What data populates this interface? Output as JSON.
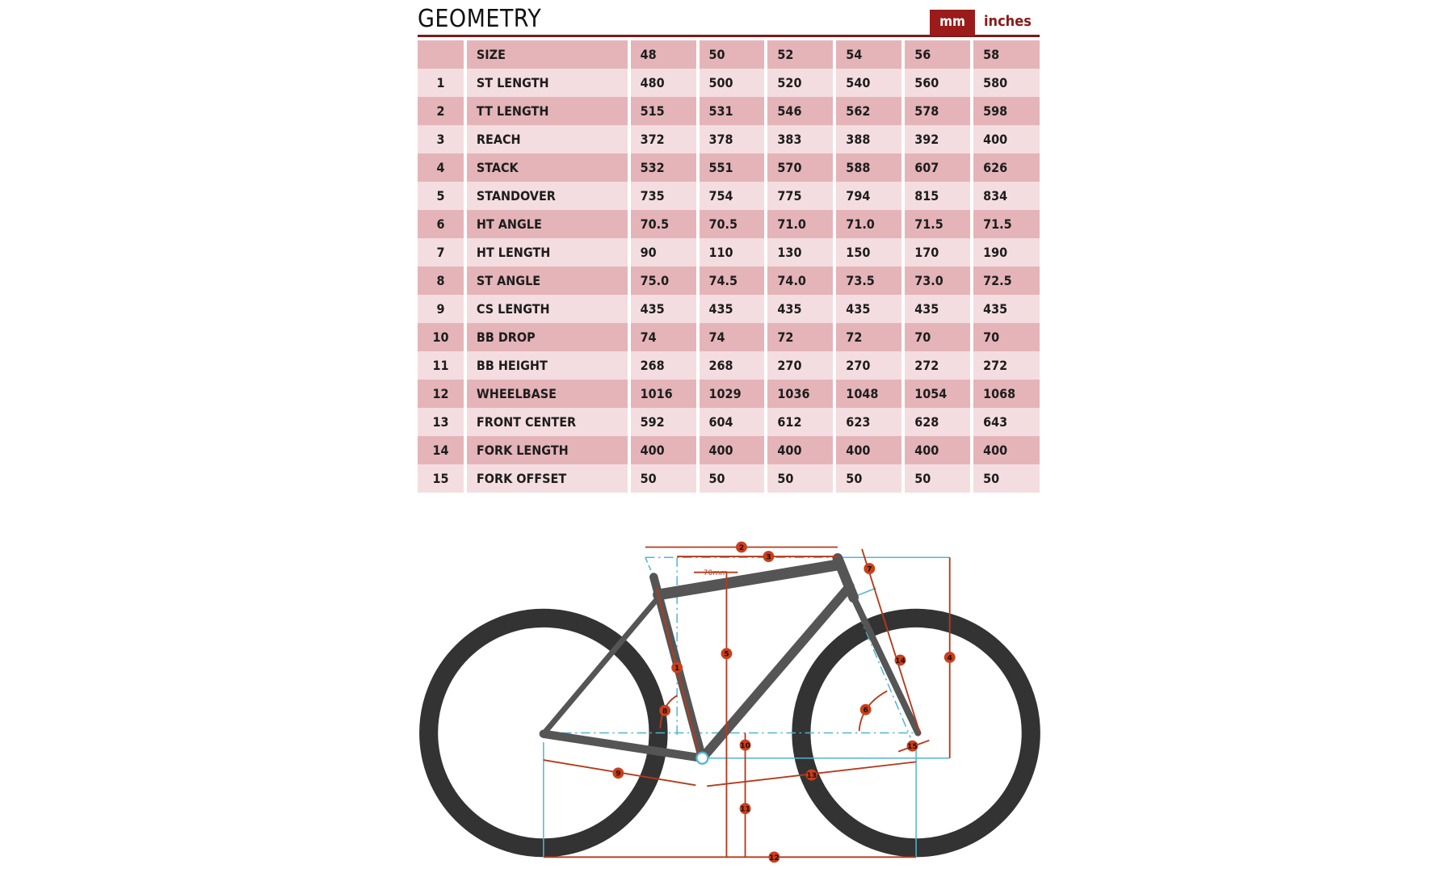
{
  "header": {
    "title": "GEOMETRY",
    "units": [
      {
        "label": "mm",
        "active": true
      },
      {
        "label": "inches",
        "active": false
      }
    ]
  },
  "colors": {
    "accent": "#9b1b1b",
    "row_dark": "#e4b4b9",
    "row_light": "#f4dde0",
    "frame": "#555555",
    "dimension": "#b53a1a",
    "guide": "#4fb6d0"
  },
  "table": {
    "header": [
      "",
      "SIZE",
      "48",
      "50",
      "52",
      "54",
      "56",
      "58"
    ],
    "rows": [
      [
        "1",
        "ST LENGTH",
        "480",
        "500",
        "520",
        "540",
        "560",
        "580"
      ],
      [
        "2",
        "TT LENGTH",
        "515",
        "531",
        "546",
        "562",
        "578",
        "598"
      ],
      [
        "3",
        "REACH",
        "372",
        "378",
        "383",
        "388",
        "392",
        "400"
      ],
      [
        "4",
        "STACK",
        "532",
        "551",
        "570",
        "588",
        "607",
        "626"
      ],
      [
        "5",
        "STANDOVER",
        "735",
        "754",
        "775",
        "794",
        "815",
        "834"
      ],
      [
        "6",
        "HT ANGLE",
        "70.5",
        "70.5",
        "71.0",
        "71.0",
        "71.5",
        "71.5"
      ],
      [
        "7",
        "HT LENGTH",
        "90",
        "110",
        "130",
        "150",
        "170",
        "190"
      ],
      [
        "8",
        "ST ANGLE",
        "75.0",
        "74.5",
        "74.0",
        "73.5",
        "73.0",
        "72.5"
      ],
      [
        "9",
        "CS LENGTH",
        "435",
        "435",
        "435",
        "435",
        "435",
        "435"
      ],
      [
        "10",
        "BB DROP",
        "74",
        "74",
        "72",
        "72",
        "70",
        "70"
      ],
      [
        "11",
        "BB HEIGHT",
        "268",
        "268",
        "270",
        "270",
        "272",
        "272"
      ],
      [
        "12",
        "WHEELBASE",
        "1016",
        "1029",
        "1036",
        "1048",
        "1054",
        "1068"
      ],
      [
        "13",
        "FRONT CENTER",
        "592",
        "604",
        "612",
        "623",
        "628",
        "643"
      ],
      [
        "14",
        "FORK LENGTH",
        "400",
        "400",
        "400",
        "400",
        "400",
        "400"
      ],
      [
        "15",
        "FORK OFFSET",
        "50",
        "50",
        "50",
        "50",
        "50",
        "50"
      ]
    ]
  },
  "diagram": {
    "offset_label": "70mm",
    "markers": [
      "1",
      "2",
      "3",
      "4",
      "5",
      "6",
      "7",
      "8",
      "9",
      "10",
      "11",
      "12",
      "13",
      "14",
      "15"
    ]
  }
}
